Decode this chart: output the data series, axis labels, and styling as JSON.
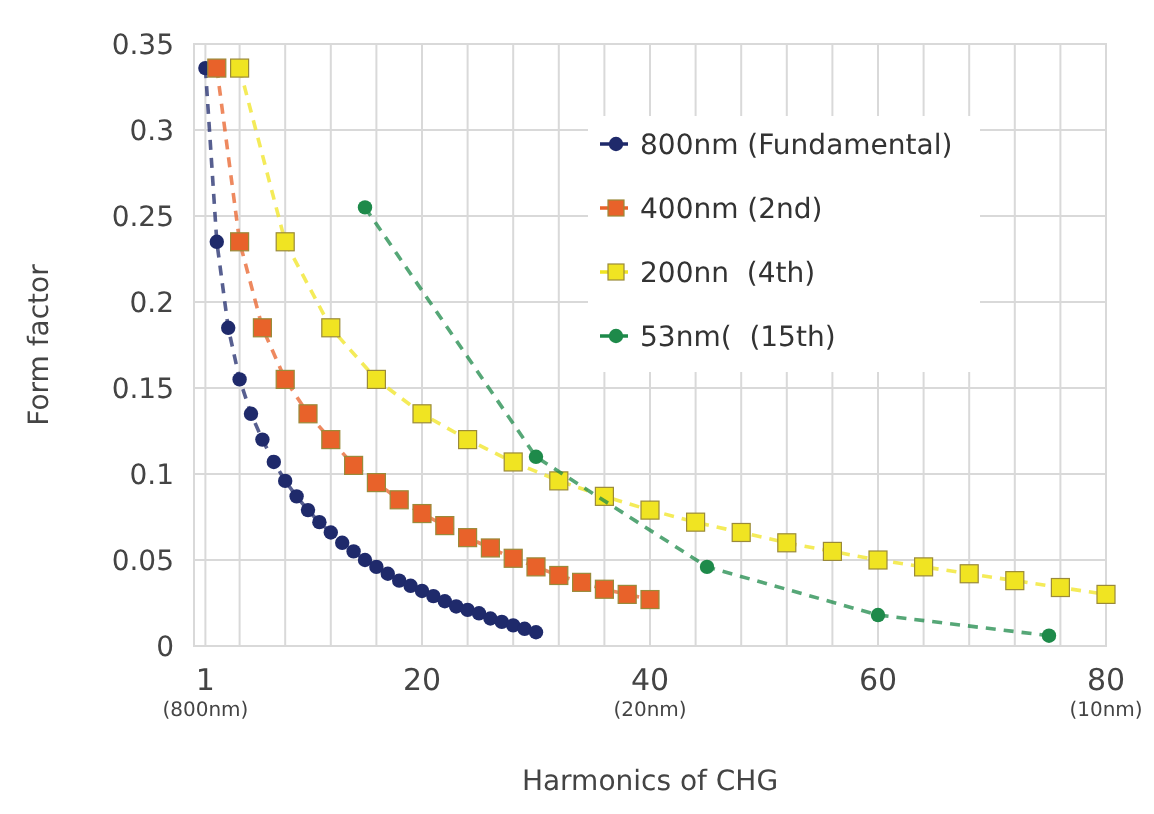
{
  "chart_data": {
    "type": "line",
    "xlabel": "Harmonics of CHG",
    "ylabel": "Form factor",
    "xlim": [
      0,
      80
    ],
    "xticks": [
      {
        "value": 1,
        "label": "1\n(800nm)"
      },
      {
        "value": 4,
        "label": null
      },
      {
        "value": 8,
        "label": null
      },
      {
        "value": 12,
        "label": null
      },
      {
        "value": 16,
        "label": null
      },
      {
        "value": 20,
        "label": "20"
      },
      {
        "value": 24,
        "label": null
      },
      {
        "value": 28,
        "label": null
      },
      {
        "value": 32,
        "label": null
      },
      {
        "value": 36,
        "label": null
      },
      {
        "value": 40,
        "label": "40\n(20nm)"
      },
      {
        "value": 44,
        "label": null
      },
      {
        "value": 48,
        "label": null
      },
      {
        "value": 52,
        "label": null
      },
      {
        "value": 56,
        "label": null
      },
      {
        "value": 60,
        "label": "60"
      },
      {
        "value": 64,
        "label": null
      },
      {
        "value": 68,
        "label": null
      },
      {
        "value": 72,
        "label": null
      },
      {
        "value": 76,
        "label": null
      },
      {
        "value": 80,
        "label": "80\n(10nm)"
      }
    ],
    "ylim": [
      0,
      0.35
    ],
    "yticks": [
      0,
      0.05,
      0.1,
      0.15,
      0.2,
      0.25,
      0.3,
      0.35
    ],
    "grid": true,
    "legend": "top right",
    "line_style": "dashed",
    "series": [
      {
        "name": "800nm (Fundamental)",
        "color": "#1f2a6b",
        "marker": "circle",
        "x": [
          1,
          2,
          3,
          4,
          5,
          6,
          7,
          8,
          9,
          10,
          11,
          12,
          13,
          14,
          15,
          16,
          17,
          18,
          19,
          20,
          21,
          22,
          23,
          24,
          25,
          26,
          27,
          28,
          29,
          30
        ],
        "values": [
          0.336,
          0.235,
          0.185,
          0.155,
          0.135,
          0.12,
          0.107,
          0.096,
          0.087,
          0.079,
          0.072,
          0.066,
          0.06,
          0.055,
          0.05,
          0.046,
          0.042,
          0.038,
          0.035,
          0.032,
          0.029,
          0.026,
          0.023,
          0.021,
          0.019,
          0.016,
          0.014,
          0.012,
          0.01,
          0.008
        ]
      },
      {
        "name": "400nm (2nd)",
        "color": "#e8622a",
        "marker": "square",
        "x": [
          2,
          4,
          6,
          8,
          10,
          12,
          14,
          16,
          18,
          20,
          22,
          24,
          26,
          28,
          30,
          32,
          34,
          36,
          38,
          40
        ],
        "values": [
          0.336,
          0.235,
          0.185,
          0.155,
          0.135,
          0.12,
          0.105,
          0.095,
          0.085,
          0.077,
          0.07,
          0.063,
          0.057,
          0.051,
          0.046,
          0.041,
          0.037,
          0.033,
          0.03,
          0.027
        ]
      },
      {
        "name": "200nn  (4th)",
        "color": "#f0e422",
        "marker": "square",
        "x": [
          4,
          8,
          12,
          16,
          20,
          24,
          28,
          32,
          36,
          40,
          44,
          48,
          52,
          56,
          60,
          64,
          68,
          72,
          76,
          80
        ],
        "values": [
          0.336,
          0.235,
          0.185,
          0.155,
          0.135,
          0.12,
          0.107,
          0.096,
          0.087,
          0.079,
          0.072,
          0.066,
          0.06,
          0.055,
          0.05,
          0.046,
          0.042,
          0.038,
          0.034,
          0.03
        ]
      },
      {
        "name": "53nm(  (15th)",
        "color": "#1e8a4a",
        "marker": "circle",
        "x": [
          15,
          30,
          45,
          60,
          75
        ],
        "values": [
          0.255,
          0.11,
          0.046,
          0.018,
          0.006
        ]
      }
    ]
  }
}
